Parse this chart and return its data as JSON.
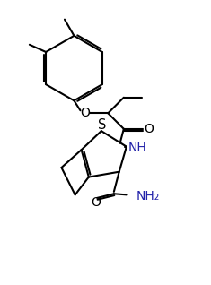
{
  "background": "#ffffff",
  "line_color": "#000000",
  "bond_lw": 1.5,
  "font_size": 9.5,
  "figsize": [
    2.35,
    3.18
  ],
  "dpi": 100,
  "nh2_color": "#2222aa",
  "nh_color": "#2222aa",
  "xlim": [
    0,
    10
  ],
  "ylim": [
    0,
    13.5
  ]
}
